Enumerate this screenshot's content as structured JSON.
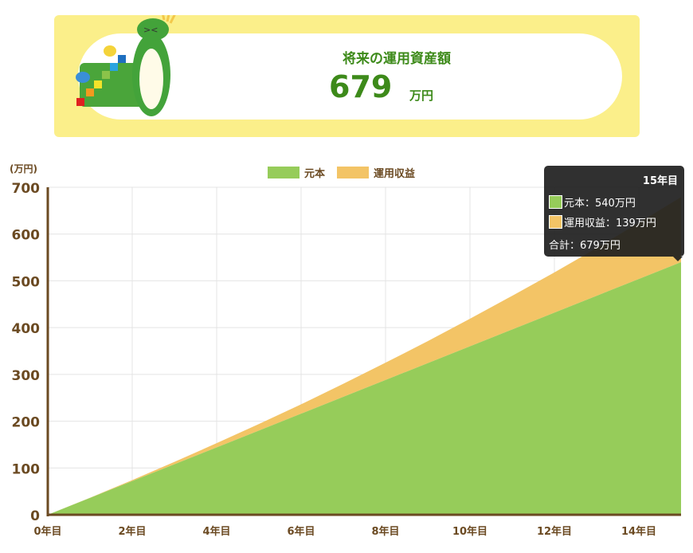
{
  "banner": {
    "title": "将来の運用資産額",
    "amount": "679",
    "unit": "万円"
  },
  "chart_data": {
    "type": "area",
    "stacked": true,
    "ylabel": "(万円)",
    "ylim": [
      0,
      700
    ],
    "yticks": [
      "0",
      "100",
      "200",
      "300",
      "400",
      "500",
      "600",
      "700"
    ],
    "x": [
      0,
      1,
      2,
      3,
      4,
      5,
      6,
      7,
      8,
      9,
      10,
      11,
      12,
      13,
      14,
      15
    ],
    "xticks": [
      "0年目",
      "2年目",
      "4年目",
      "6年目",
      "8年目",
      "10年目",
      "12年目",
      "14年目"
    ],
    "series": [
      {
        "name": "元本",
        "color": "#96cc5a",
        "values": [
          0,
          36,
          72,
          108,
          144,
          180,
          216,
          252,
          288,
          324,
          360,
          396,
          432,
          468,
          504,
          540
        ]
      },
      {
        "name": "運用収益",
        "color": "#f3c466",
        "values": [
          0,
          0.5,
          2,
          5,
          9,
          14,
          20,
          28,
          37,
          47,
          59,
          72,
          86,
          102,
          120,
          139
        ]
      }
    ],
    "legend": "top",
    "grid": true,
    "tooltip": {
      "title": "15年目",
      "rows": [
        "元本：540万円",
        "運用収益：139万円"
      ],
      "total": "合計：679万円"
    }
  }
}
